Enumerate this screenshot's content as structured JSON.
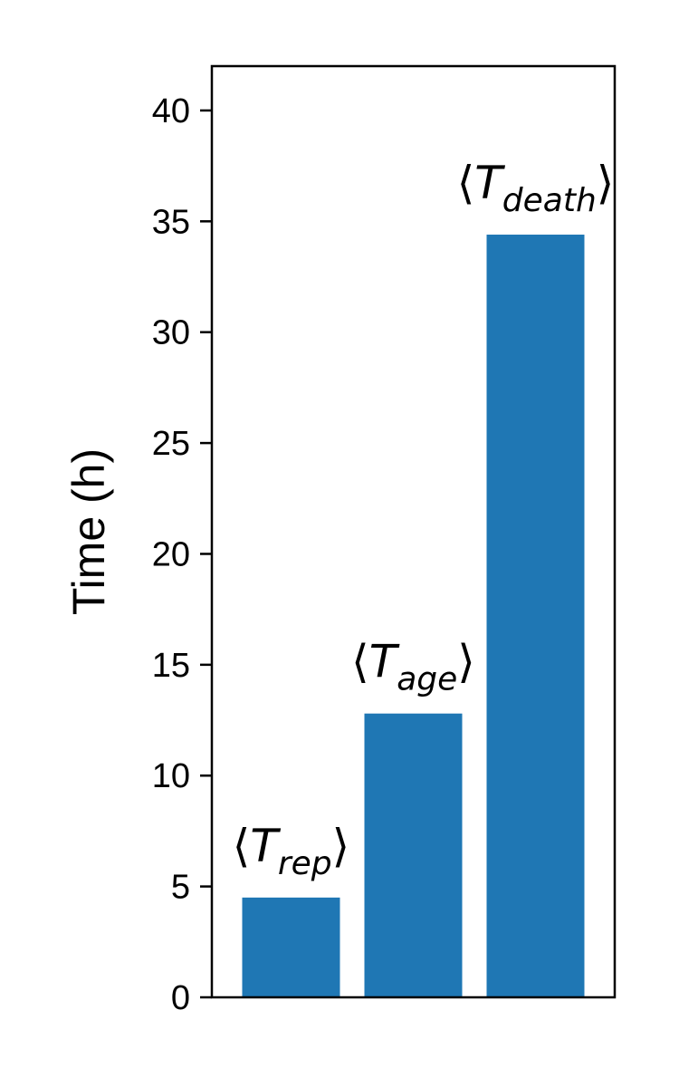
{
  "chart_data": {
    "type": "bar",
    "categories": [
      "rep",
      "age",
      "death"
    ],
    "values": [
      4.5,
      12.8,
      34.4
    ],
    "bar_labels": [
      {
        "open": "⟨",
        "var": "T",
        "sub": "rep",
        "close": "⟩"
      },
      {
        "open": "⟨",
        "var": "T",
        "sub": "age",
        "close": "⟩"
      },
      {
        "open": "⟨",
        "var": "T",
        "sub": "death",
        "close": "⟩"
      }
    ],
    "ylabel": "Time (h)",
    "xlabel": "",
    "ylim": [
      0,
      42
    ],
    "yticks": [
      0,
      5,
      10,
      15,
      20,
      25,
      30,
      35,
      40
    ],
    "ytick_labels": [
      "0",
      "5",
      "10",
      "15",
      "20",
      "25",
      "30",
      "35",
      "40"
    ],
    "grid": false,
    "bar_color": "#1f77b4"
  }
}
